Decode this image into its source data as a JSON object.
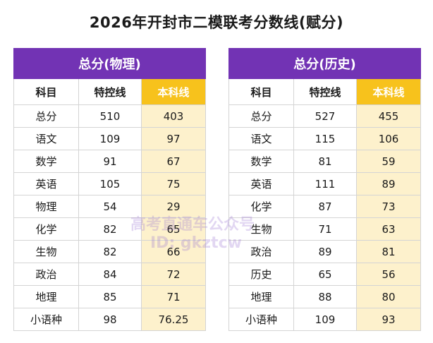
{
  "title": "2026年开封市二模联考分数线(赋分)",
  "columns": [
    "科目",
    "特控线",
    "本科线"
  ],
  "accent_colors": {
    "band": "#7233b4",
    "highlight_header": "#f7c21c",
    "highlight_column": "#fdf1cc"
  },
  "tables": [
    {
      "band": "总分(物理)",
      "rows": [
        [
          "总分",
          "510",
          "403"
        ],
        [
          "语文",
          "109",
          "97"
        ],
        [
          "数学",
          "91",
          "67"
        ],
        [
          "英语",
          "105",
          "75"
        ],
        [
          "物理",
          "54",
          "29"
        ],
        [
          "化学",
          "82",
          "65"
        ],
        [
          "生物",
          "82",
          "66"
        ],
        [
          "政治",
          "84",
          "72"
        ],
        [
          "地理",
          "85",
          "71"
        ],
        [
          "小语种",
          "98",
          "76.25"
        ]
      ]
    },
    {
      "band": "总分(历史)",
      "rows": [
        [
          "总分",
          "527",
          "455"
        ],
        [
          "语文",
          "115",
          "106"
        ],
        [
          "数学",
          "81",
          "59"
        ],
        [
          "英语",
          "111",
          "89"
        ],
        [
          "化学",
          "87",
          "73"
        ],
        [
          "生物",
          "71",
          "63"
        ],
        [
          "政治",
          "89",
          "81"
        ],
        [
          "历史",
          "65",
          "56"
        ],
        [
          "地理",
          "88",
          "80"
        ],
        [
          "小语种",
          "109",
          "93"
        ]
      ]
    }
  ],
  "watermark": {
    "line1": "高考直通车公众号",
    "line2": "ID: gkztcw"
  }
}
